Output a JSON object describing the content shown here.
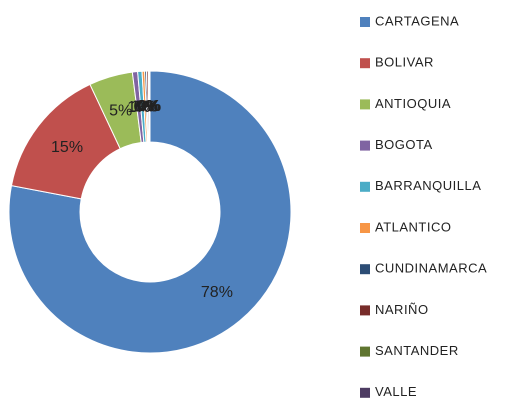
{
  "chart_data": {
    "type": "donut",
    "categories": [
      "CARTAGENA",
      "BOLIVAR",
      "ANTIOQUIA",
      "BOGOTA",
      "BARRANQUILLA",
      "ATLANTICO",
      "CUNDINAMARCA",
      "NARIÑO",
      "SANTANDER",
      "VALLE"
    ],
    "values": [
      78,
      15,
      5,
      0.6,
      0.5,
      0.3,
      0.2,
      0.2,
      0.1,
      0.1
    ],
    "value_labels": [
      "78%",
      "15%",
      "5%",
      "1%",
      "1%",
      "0%",
      "0%",
      "0%",
      "0%",
      "0%"
    ],
    "colors": [
      "#4f81bd",
      "#c0504d",
      "#9bbb59",
      "#8064a2",
      "#4bacc6",
      "#f79646",
      "#2c4d75",
      "#772c2a",
      "#5f7530",
      "#4d3b62"
    ],
    "legend": "right"
  }
}
